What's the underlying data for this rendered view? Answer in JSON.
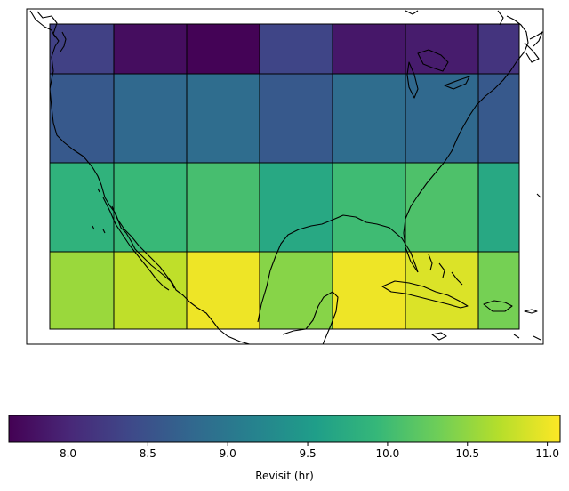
{
  "chart_data": {
    "type": "heatmap",
    "title": "",
    "lon_edges": [
      -125,
      -120,
      -115,
      -110,
      -105,
      -100,
      -95,
      -91.8
    ],
    "lat_edges": [
      50,
      45,
      35,
      25,
      16.3
    ],
    "cells": [
      [
        8.3,
        7.75,
        7.65,
        8.35,
        7.85,
        7.9,
        8.15
      ],
      [
        8.6,
        8.8,
        8.85,
        8.6,
        8.85,
        8.8,
        8.6
      ],
      [
        9.85,
        9.95,
        10.05,
        9.7,
        10.0,
        10.1,
        9.7
      ],
      [
        10.55,
        10.75,
        11.0,
        10.45,
        11.0,
        10.9,
        10.35
      ]
    ],
    "colorbar": {
      "min": 7.63,
      "max": 11.08,
      "ticks": [
        "8.0",
        "8.5",
        "9.0",
        "9.5",
        "10.0",
        "10.5",
        "11.0"
      ],
      "tick_values": [
        8.0,
        8.5,
        9.0,
        9.5,
        10.0,
        10.5,
        11.0
      ],
      "label": "Revisit (hr)",
      "colormap": "viridis"
    },
    "basemap": "coastlines",
    "grid_lines": true
  },
  "colors": {
    "cell_border": "#000000",
    "coastline": "#000000"
  }
}
